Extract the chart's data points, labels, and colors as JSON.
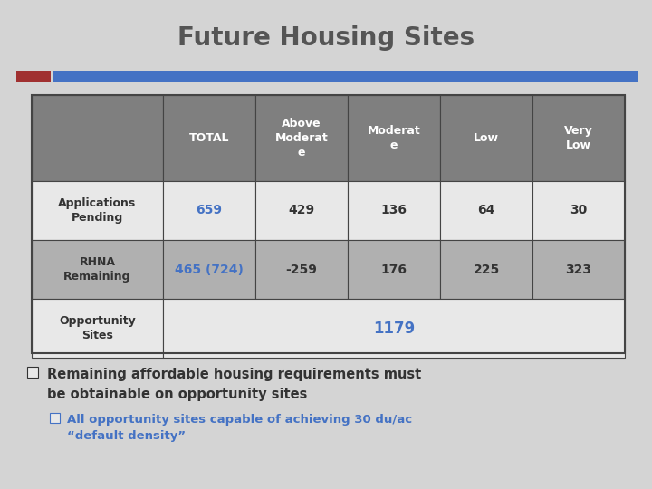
{
  "title": "Future Housing Sites",
  "title_fontsize": 20,
  "title_color": "#555555",
  "bg_color": "#d4d4d4",
  "header_bg": "#7f7f7f",
  "header_text_color": "#ffffff",
  "row1_bg": "#e8e8e8",
  "row2_bg": "#b0b0b0",
  "row3_bg": "#e8e8e8",
  "col_labels": [
    "TOTAL",
    "Above\nModerat\ne",
    "Moderat\ne",
    "Low",
    "Very\nLow"
  ],
  "row_labels": [
    "Applications\nPending",
    "RHNA\nRemaining",
    "Opportunity\nSites"
  ],
  "row1_values": [
    "659",
    "429",
    "136",
    "64",
    "30"
  ],
  "row2_values": [
    "465 (724)",
    "-259",
    "176",
    "225",
    "323"
  ],
  "row3_value": "1179",
  "highlight_color": "#4472c4",
  "border_color": "#444444",
  "bar_red": "#a03030",
  "bar_blue": "#4472c4",
  "bullet_text1": "Remaining affordable housing requirements must\nbe obtainable on opportunity sites",
  "bullet_text2": "All opportunity sites capable of achieving 30 du/ac\n“default density”",
  "text_dark": "#333333",
  "text_blue": "#4472c4"
}
